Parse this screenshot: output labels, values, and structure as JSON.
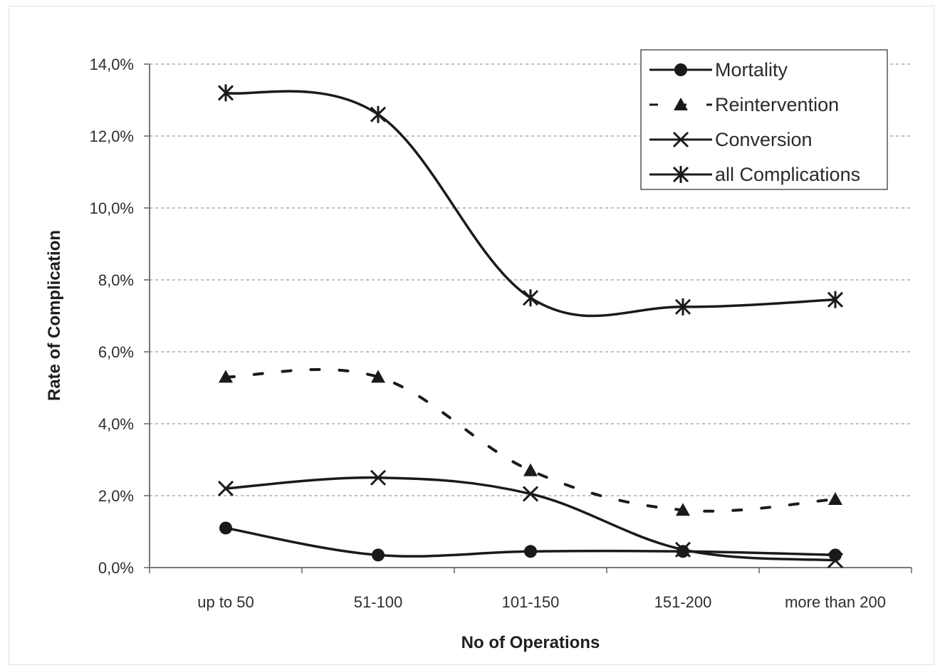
{
  "chart_data": {
    "type": "line",
    "xlabel": "No of Operations",
    "ylabel": "Rate of Complication",
    "categories": [
      "up to 50",
      "51-100",
      "101-150",
      "151-200",
      "more than 200"
    ],
    "y_ticks": [
      "0,0%",
      "2,0%",
      "4,0%",
      "6,0%",
      "8,0%",
      "10,0%",
      "12,0%",
      "14,0%"
    ],
    "ylim": [
      0,
      14
    ],
    "grid": "horizontal dashed",
    "legend_position": "top-right",
    "series": [
      {
        "name": "Mortality",
        "values": [
          1.1,
          0.35,
          0.45,
          0.45,
          0.35
        ],
        "style": "solid",
        "marker": "diamond",
        "color": "#1a1a1a"
      },
      {
        "name": "Reintervention",
        "values": [
          5.3,
          5.3,
          2.7,
          1.6,
          1.9
        ],
        "style": "dashed",
        "marker": "triangle",
        "color": "#1a1a1a"
      },
      {
        "name": "Conversion",
        "values": [
          2.2,
          2.5,
          2.05,
          0.5,
          0.2
        ],
        "style": "solid",
        "marker": "x",
        "color": "#1a1a1a"
      },
      {
        "name": "all Complications",
        "values": [
          13.2,
          12.6,
          7.5,
          7.25,
          7.45
        ],
        "style": "solid",
        "marker": "asterisk",
        "color": "#1a1a1a"
      }
    ]
  }
}
